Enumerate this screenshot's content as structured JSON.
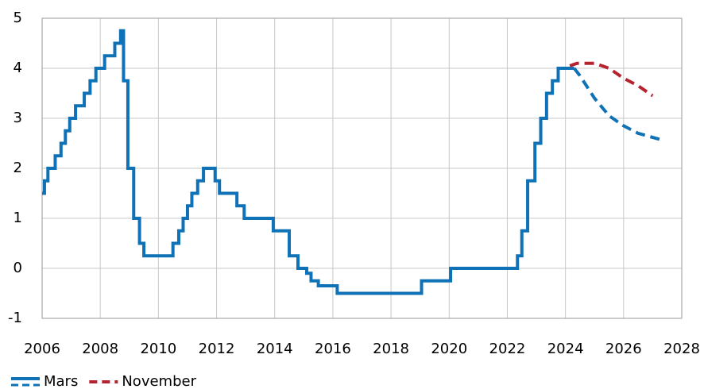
{
  "chart_data": {
    "type": "line",
    "step": true,
    "grid": true,
    "legend": "bottom-left",
    "xlim": [
      2006,
      2028
    ],
    "xticks": [
      2006,
      2008,
      2010,
      2012,
      2014,
      2016,
      2018,
      2020,
      2022,
      2024,
      2026,
      2028
    ],
    "ylim": [
      -1,
      5
    ],
    "yticks": [
      -1,
      0,
      1,
      2,
      3,
      4,
      5
    ],
    "series": [
      {
        "name": "Mars",
        "color": "#0f72b6",
        "x": [
          2006.0,
          2006.08,
          2006.2,
          2006.45,
          2006.65,
          2006.8,
          2006.95,
          2007.15,
          2007.45,
          2007.65,
          2007.85,
          2008.15,
          2008.5,
          2008.7,
          2008.8,
          2008.95,
          2009.15,
          2009.35,
          2009.5,
          2010.5,
          2010.7,
          2010.85,
          2011.0,
          2011.15,
          2011.35,
          2011.55,
          2011.95,
          2012.1,
          2012.7,
          2012.95,
          2013.95,
          2014.5,
          2014.8,
          2015.1,
          2015.25,
          2015.5,
          2016.15,
          2019.05,
          2020.05,
          2022.35,
          2022.5,
          2022.7,
          2022.95,
          2023.15,
          2023.35,
          2023.55,
          2023.75,
          2024.3
        ],
        "values": [
          1.5,
          1.75,
          2.0,
          2.25,
          2.5,
          2.75,
          3.0,
          3.25,
          3.5,
          3.75,
          4.0,
          4.25,
          4.5,
          4.75,
          3.75,
          2.0,
          1.0,
          0.5,
          0.25,
          0.5,
          0.75,
          1.0,
          1.25,
          1.5,
          1.75,
          2.0,
          1.75,
          1.5,
          1.25,
          1.0,
          0.75,
          0.25,
          0.0,
          -0.1,
          -0.25,
          -0.35,
          -0.5,
          -0.25,
          0.0,
          0.25,
          0.75,
          1.75,
          2.5,
          3.0,
          3.5,
          3.75,
          4.0,
          4.0
        ],
        "forecast": {
          "x": [
            2024.3,
            2024.5,
            2025.0,
            2025.5,
            2026.0,
            2026.5,
            2027.3
          ],
          "values": [
            4.0,
            3.85,
            3.4,
            3.05,
            2.85,
            2.7,
            2.57
          ]
        }
      },
      {
        "name": "November",
        "color": "#b5232f",
        "forecast": {
          "x": [
            2024.15,
            2024.4,
            2025.0,
            2025.5,
            2026.0,
            2026.5,
            2027.0
          ],
          "values": [
            4.05,
            4.1,
            4.1,
            4.0,
            3.8,
            3.65,
            3.45
          ]
        }
      }
    ]
  }
}
